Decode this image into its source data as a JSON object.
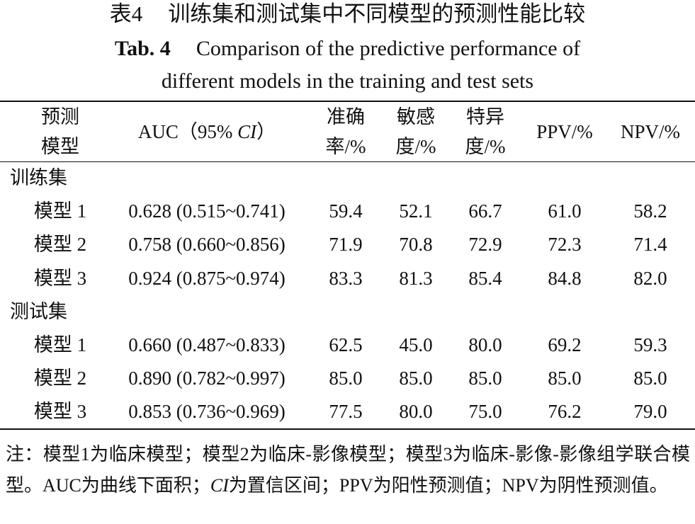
{
  "title_cn": {
    "label": "表4",
    "text": "训练集和测试集中不同模型的预测性能比较"
  },
  "title_en": {
    "label": "Tab. 4",
    "lines": [
      "Comparison of the predictive performance of",
      "different models in the training and test sets"
    ]
  },
  "table": {
    "header": [
      [
        "预测",
        "模型"
      ],
      {
        "parts": [
          "AUC（95% ",
          "CI",
          "）"
        ]
      },
      [
        "准确",
        "率/%"
      ],
      [
        "敏感",
        "度/%"
      ],
      [
        "特异",
        "度/%"
      ],
      [
        "PPV/%"
      ],
      [
        "NPV/%"
      ]
    ],
    "groups": [
      {
        "name": "训练集",
        "rows": [
          [
            "模型 1",
            "0.628 (0.515~0.741)",
            "59.4",
            "52.1",
            "66.7",
            "61.0",
            "58.2"
          ],
          [
            "模型 2",
            "0.758 (0.660~0.856)",
            "71.9",
            "70.8",
            "72.9",
            "72.3",
            "71.4"
          ],
          [
            "模型 3",
            "0.924 (0.875~0.974)",
            "83.3",
            "81.3",
            "85.4",
            "84.8",
            "82.0"
          ]
        ]
      },
      {
        "name": "测试集",
        "rows": [
          [
            "模型 1",
            "0.660 (0.487~0.833)",
            "62.5",
            "45.0",
            "80.0",
            "69.2",
            "59.3"
          ],
          [
            "模型 2",
            "0.890 (0.782~0.997)",
            "85.0",
            "85.0",
            "85.0",
            "85.0",
            "85.0"
          ],
          [
            "模型 3",
            "0.853 (0.736~0.969)",
            "77.5",
            "80.0",
            "75.0",
            "76.2",
            "79.0"
          ]
        ]
      }
    ]
  },
  "note": {
    "parts": [
      "注：模型1为临床模型；模型2为临床-影像模型；模型3为临床-影像-影像组学联合模型。AUC为曲线下面积；",
      "CI",
      "为置信区间；PPV为阳性预测值；NPV为阴性预测值。"
    ]
  }
}
